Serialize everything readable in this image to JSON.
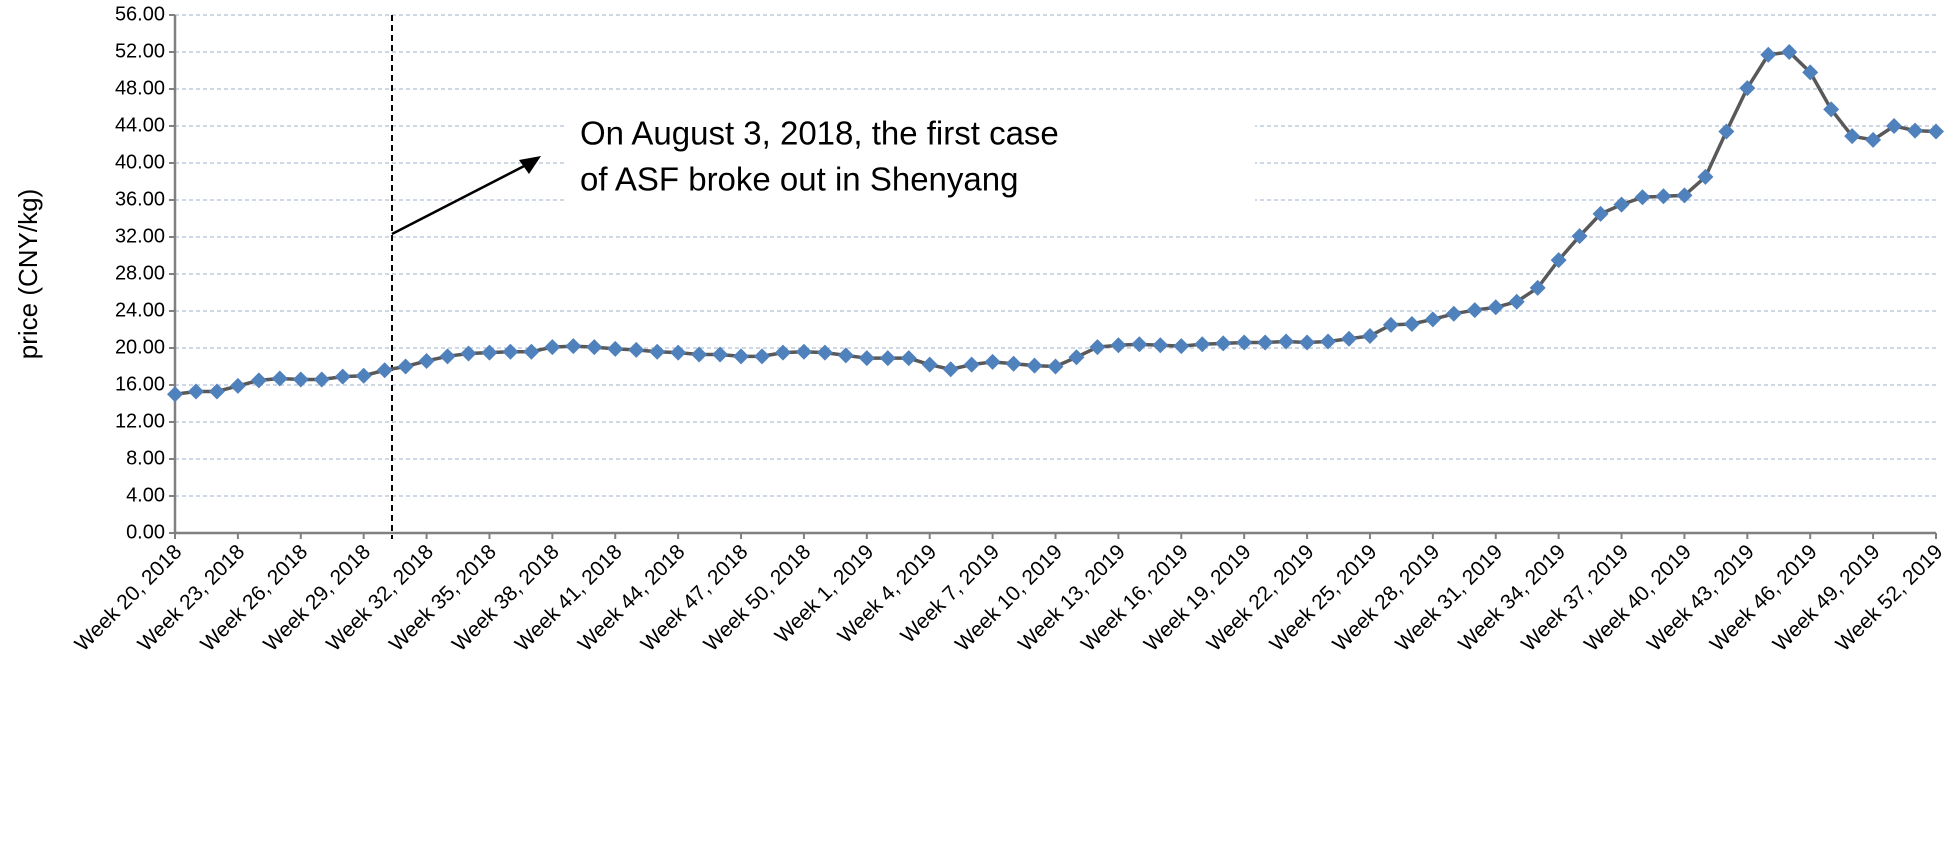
{
  "chart_data": {
    "type": "line",
    "y_label": "price (CNY/kg)",
    "annotation": [
      "On August 3, 2018, the first case",
      "of ASF broke out in Shenyang"
    ],
    "categories": [
      "Week 20, 2018",
      null,
      null,
      "Week 23, 2018",
      null,
      null,
      "Week 26, 2018",
      null,
      null,
      "Week 29, 2018",
      null,
      null,
      "Week 32, 2018",
      null,
      null,
      "Week 35, 2018",
      null,
      null,
      "Week 38, 2018",
      null,
      null,
      "Week 41, 2018",
      null,
      null,
      "Week 44, 2018",
      null,
      null,
      "Week 47, 2018",
      null,
      null,
      "Week 50, 2018",
      null,
      null,
      "Week 1, 2019",
      null,
      null,
      "Week 4, 2019",
      null,
      null,
      "Week 7, 2019",
      null,
      null,
      "Week 10, 2019",
      null,
      null,
      "Week 13, 2019",
      null,
      null,
      "Week 16, 2019",
      null,
      null,
      "Week 19, 2019",
      null,
      null,
      "Week 22, 2019",
      null,
      null,
      "Week 25, 2019",
      null,
      null,
      "Week 28, 2019",
      null,
      null,
      "Week 31, 2019",
      null,
      null,
      "Week 34, 2019",
      null,
      null,
      "Week 37, 2019",
      null,
      null,
      "Week 40, 2019",
      null,
      null,
      "Week 43, 2019",
      null,
      null,
      "Week 46, 2019",
      null,
      null,
      "Week 49, 2019",
      null,
      null,
      "Week 52, 2019"
    ],
    "series": [
      {
        "name": "price",
        "color": "#595959",
        "marker_color": "#4f81bd",
        "values": [
          15.0,
          15.3,
          15.3,
          15.9,
          16.5,
          16.7,
          16.6,
          16.6,
          16.9,
          17.0,
          17.6,
          18.0,
          18.6,
          19.1,
          19.4,
          19.5,
          19.6,
          19.6,
          20.1,
          20.2,
          20.1,
          19.9,
          19.8,
          19.6,
          19.5,
          19.3,
          19.3,
          19.1,
          19.1,
          19.5,
          19.6,
          19.5,
          19.2,
          18.9,
          18.9,
          18.9,
          18.2,
          17.7,
          18.2,
          18.5,
          18.3,
          18.1,
          18.0,
          19.0,
          20.1,
          20.3,
          20.4,
          20.3,
          20.2,
          20.4,
          20.5,
          20.6,
          20.6,
          20.7,
          20.6,
          20.7,
          21.0,
          21.3,
          22.5,
          22.6,
          23.1,
          23.7,
          24.1,
          24.4,
          25.0,
          26.5,
          29.5,
          32.1,
          34.5,
          35.5,
          36.3,
          36.4,
          36.5,
          38.5,
          43.4,
          48.1,
          51.7,
          52.0,
          49.8,
          45.8,
          42.9,
          42.5,
          44.0,
          43.5,
          43.4
        ]
      }
    ],
    "ylim": [
      0,
      56
    ],
    "yticks": [
      {
        "value": 0,
        "label": "0.00"
      },
      {
        "value": 4,
        "label": "4.00"
      },
      {
        "value": 8,
        "label": "8.00"
      },
      {
        "value": 12,
        "label": "12.00"
      },
      {
        "value": 16,
        "label": "16.00"
      },
      {
        "value": 20,
        "label": "20.00"
      },
      {
        "value": 24,
        "label": "24.00"
      },
      {
        "value": 28,
        "label": "28.00"
      },
      {
        "value": 32,
        "label": "32.00"
      },
      {
        "value": 36,
        "label": "36.00"
      },
      {
        "value": 40,
        "label": "40.00"
      },
      {
        "value": 44,
        "label": "44.00"
      },
      {
        "value": 48,
        "label": "48.00"
      },
      {
        "value": 52,
        "label": "52.00"
      },
      {
        "value": 56,
        "label": "56.00"
      }
    ],
    "grid": true
  }
}
